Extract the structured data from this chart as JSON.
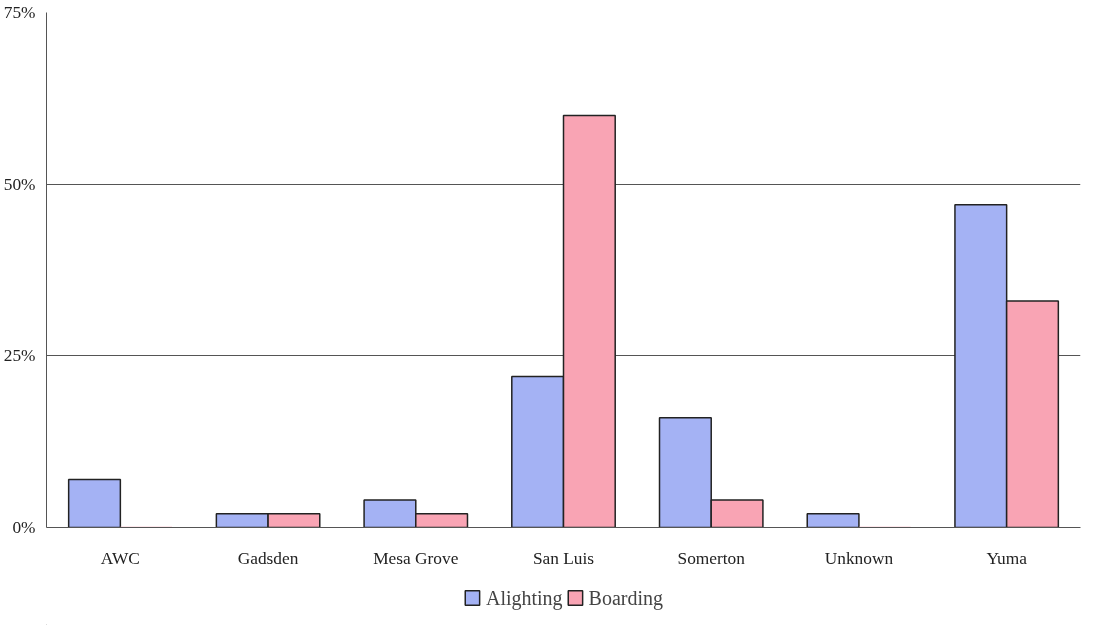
{
  "chart_data": {
    "type": "bar",
    "categories": [
      "AWC",
      "Gadsden",
      "Mesa Grove",
      "San Luis",
      "Somerton",
      "Unknown",
      "Yuma"
    ],
    "series": [
      {
        "name": "Alighting",
        "color": "#a4b2f4",
        "values": [
          7,
          2,
          4,
          22,
          16,
          2,
          47
        ]
      },
      {
        "name": "Boarding",
        "color": "#f9a4b4",
        "values": [
          0,
          2,
          2,
          60,
          4,
          0,
          33
        ]
      }
    ],
    "ylim": [
      0,
      75
    ],
    "yticks": [
      {
        "value": 0,
        "label": "0%"
      },
      {
        "value": 25,
        "label": "25%"
      },
      {
        "value": 50,
        "label": "50%"
      },
      {
        "value": 75,
        "label": "75%"
      }
    ],
    "grid": "y",
    "legend": "bottom"
  }
}
